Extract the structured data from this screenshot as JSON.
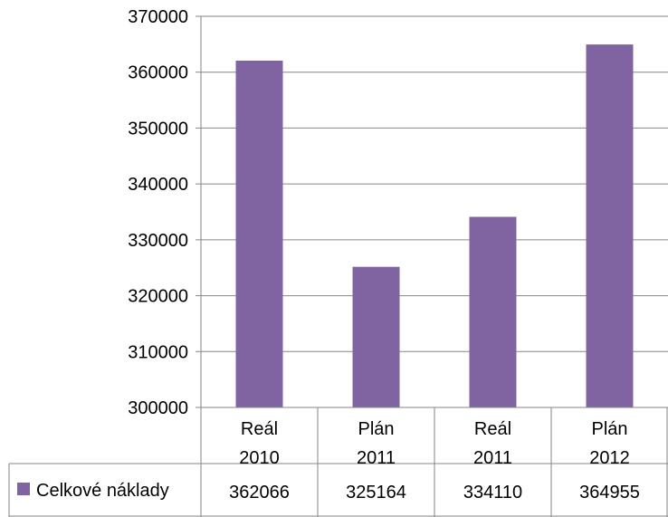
{
  "chart_data": {
    "type": "bar",
    "categories": [
      [
        "Reál",
        "2010"
      ],
      [
        "Plán",
        "2011"
      ],
      [
        "Reál",
        "2011"
      ],
      [
        "Plán",
        "2012"
      ]
    ],
    "series": [
      {
        "name": "Celkové náklady",
        "values": [
          362066,
          325164,
          334110,
          364955
        ],
        "color": "#8064A2"
      }
    ],
    "title": "",
    "xlabel": "",
    "ylabel": "",
    "ylim": [
      300000,
      370000
    ],
    "yticks": [
      300000,
      310000,
      320000,
      330000,
      340000,
      350000,
      360000,
      370000
    ],
    "grid": true,
    "data_table": true,
    "legend": "data-table-left"
  }
}
